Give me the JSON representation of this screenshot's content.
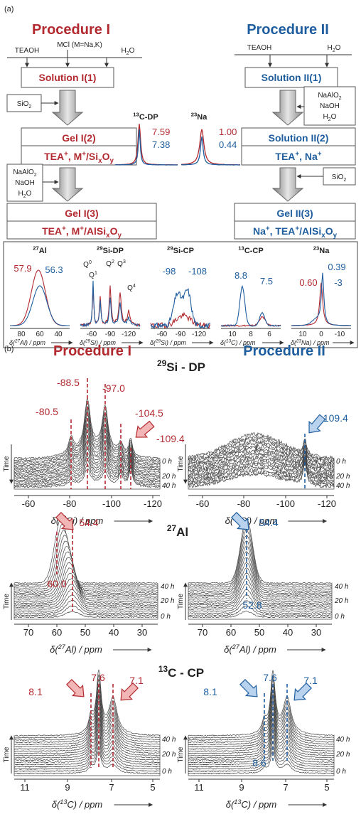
{
  "a": {
    "label": "(a)",
    "proc1": "Procedure I",
    "proc2": "Procedure II",
    "left_inputs": [
      "TEAOH",
      "MCl (M=Na,K)",
      [
        [
          "H"
        ],
        [
          "2",
          "sub"
        ],
        [
          "O"
        ]
      ]
    ],
    "sol1": "Solution I(1)",
    "sio2": [
      [
        "SiO"
      ],
      [
        "2",
        "sub"
      ]
    ],
    "gel2": "Gel I(2)",
    "gel2_formula": [
      [
        "TEA"
      ],
      [
        "+",
        "sup"
      ],
      [
        ", M"
      ],
      [
        "+",
        "sup"
      ],
      [
        "/Si"
      ],
      [
        "x",
        "sub"
      ],
      [
        "O"
      ],
      [
        "y",
        "sub"
      ]
    ],
    "additives": [
      [
        [
          "NaAlO"
        ],
        [
          "2",
          "sub"
        ]
      ],
      "NaOH",
      [
        [
          "H"
        ],
        [
          "2",
          "sub"
        ],
        [
          "O"
        ]
      ]
    ],
    "gel3": "Gel I(3)",
    "gel3_formula": [
      [
        "TEA"
      ],
      [
        "+",
        "sup"
      ],
      [
        ", M"
      ],
      [
        "+",
        "sup"
      ],
      [
        "/AlSi"
      ],
      [
        "x",
        "sub"
      ],
      [
        "O"
      ],
      [
        "y",
        "sub"
      ]
    ],
    "right_inputs": [
      "TEAOH",
      [
        [
          "H"
        ],
        [
          "2",
          "sub"
        ],
        [
          "O"
        ]
      ]
    ],
    "sol2_1": "Solution II(1)",
    "additives_2": [
      [
        [
          "NaAlO"
        ],
        [
          "2",
          "sub"
        ]
      ],
      "NaOH",
      [
        [
          "H"
        ],
        [
          "2",
          "sub"
        ],
        [
          "O"
        ]
      ]
    ],
    "sol2_2": "Solution II(2)",
    "sol2_2_formula": [
      [
        "TEA"
      ],
      [
        "+",
        "sup"
      ],
      [
        ", Na"
      ],
      [
        "+",
        "sup"
      ]
    ],
    "sio2_2": [
      [
        "SiO"
      ],
      [
        "2",
        "sub"
      ]
    ],
    "gel2_3": "Gel II(3)",
    "gel2_3_formula": [
      [
        "Na"
      ],
      [
        "+",
        "sup"
      ],
      [
        ", TEA"
      ],
      [
        "+",
        "sup"
      ],
      [
        "/AlSi"
      ],
      [
        "x",
        "sub"
      ],
      [
        "O"
      ],
      [
        "y",
        "sub"
      ]
    ],
    "c13_dp": {
      "title": [
        [
          "13",
          "sup"
        ],
        [
          "C-DP"
        ]
      ],
      "red": "7.59",
      "blue": "7.38"
    },
    "na23": {
      "title": [
        [
          "23",
          "sup"
        ],
        [
          "Na"
        ]
      ],
      "red": "1.00",
      "blue": "0.44"
    },
    "panels": [
      {
        "title": [
          [
            "27",
            "sup"
          ],
          [
            "Al"
          ]
        ],
        "labels": [
          "57.9",
          "56.3"
        ],
        "ticks": [
          "80",
          "60",
          "40"
        ],
        "axis": [
          [
            "δ("
          ],
          [
            "27",
            "sup"
          ],
          [
            "Al) / ppm"
          ]
        ]
      },
      {
        "title": [
          [
            "29",
            "sup"
          ],
          [
            "Si-DP"
          ]
        ],
        "labels": [
          [
            [
              "Q"
            ],
            [
              "0",
              "sup"
            ]
          ],
          [
            [
              "Q"
            ],
            [
              "1",
              "sup"
            ]
          ],
          [
            [
              "Q"
            ],
            [
              "2",
              "sup"
            ]
          ],
          [
            [
              "Q"
            ],
            [
              "3",
              "sup"
            ]
          ],
          [
            [
              "Q"
            ],
            [
              "4",
              "sup"
            ]
          ]
        ],
        "ticks": [
          "-60",
          "-90",
          "-120"
        ],
        "axis": [
          [
            "δ("
          ],
          [
            "29",
            "sup"
          ],
          [
            "Si) / ppm"
          ]
        ]
      },
      {
        "title": [
          [
            "29",
            "sup"
          ],
          [
            "Si-CP"
          ]
        ],
        "labels": [
          "-98",
          "-108"
        ],
        "ticks": [
          "-60",
          "-90",
          "-120"
        ],
        "axis": [
          [
            "δ("
          ],
          [
            "29",
            "sup"
          ],
          [
            "Si) / ppm"
          ]
        ]
      },
      {
        "title": [
          [
            "13",
            "sup"
          ],
          [
            "C-CP"
          ]
        ],
        "labels": [
          "8.8",
          "7.5"
        ],
        "ticks": [
          "10",
          "8",
          "6"
        ],
        "axis": [
          [
            "δ("
          ],
          [
            "13",
            "sup"
          ],
          [
            "C) / ppm"
          ]
        ]
      },
      {
        "title": [
          [
            "23",
            "sup"
          ],
          [
            "Na"
          ]
        ],
        "labels": [
          "0.60",
          "0.39",
          "-3"
        ],
        "ticks": [
          "10",
          "0",
          "-10"
        ],
        "axis": [
          [
            "δ("
          ],
          [
            "23",
            "sup"
          ],
          [
            "Na) / ppm"
          ]
        ]
      }
    ]
  },
  "b": {
    "label": "(b)",
    "proc1": "Procedure I",
    "proc2": "Procedure II",
    "time_axis": "Time",
    "si29": {
      "title": [
        [
          "29",
          "sup"
        ],
        [
          "Si - DP"
        ]
      ],
      "left_labels": [
        "-88.5",
        "-97.0",
        "-80.5",
        "-104.5",
        "-109.4"
      ],
      "right_labels": [
        "-109.4"
      ],
      "ticks": [
        "-60",
        "-80",
        "-100",
        "-120"
      ],
      "axis": [
        [
          "δ("
        ],
        [
          "29",
          "sup"
        ],
        [
          "Si) / ppm"
        ]
      ],
      "times": [
        "0 h",
        "20 h",
        "40 h"
      ]
    },
    "al27": {
      "title": [
        [
          "27",
          "sup"
        ],
        [
          "Al"
        ]
      ],
      "left_labels": [
        "54.4",
        "60.0"
      ],
      "right_labels": [
        "54.4",
        "52.8"
      ],
      "ticks": [
        "70",
        "60",
        "50",
        "40",
        "30"
      ],
      "axis": [
        [
          "δ("
        ],
        [
          "27",
          "sup"
        ],
        [
          "Al) / ppm"
        ]
      ],
      "times": [
        "40 h",
        "20 h",
        "0 h"
      ]
    },
    "c13": {
      "title": [
        [
          "13",
          "sup"
        ],
        [
          "C - CP"
        ]
      ],
      "left_labels": [
        "7.6",
        "7.1",
        "8.1"
      ],
      "right_labels": [
        "7.6",
        "7.1",
        "8.1",
        "8.6"
      ],
      "ticks": [
        "11",
        "9",
        "7",
        "5"
      ],
      "axis": [
        [
          "δ("
        ],
        [
          "13",
          "sup"
        ],
        [
          "C) / ppm"
        ]
      ],
      "times": [
        "40 h",
        "20 h",
        "0 h"
      ]
    }
  }
}
